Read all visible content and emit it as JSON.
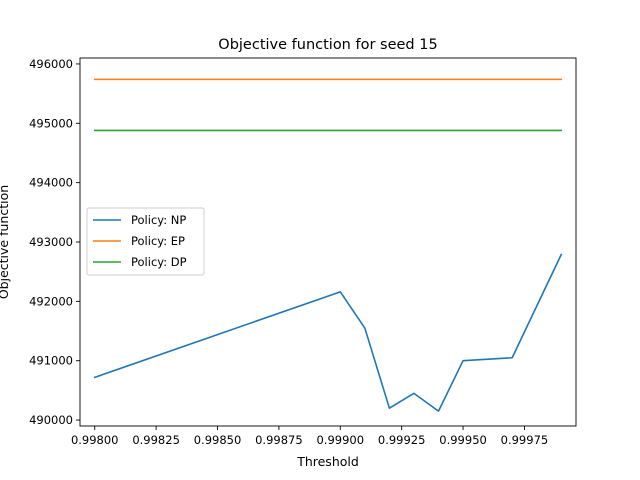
{
  "chart_data": {
    "type": "line",
    "title": "Objective function for seed 15",
    "xlabel": "Threshold",
    "ylabel": "Objective function",
    "xlim": [
      0.99794,
      0.99996
    ],
    "ylim": [
      489900,
      496100
    ],
    "x_ticks": [
      0.998,
      0.99825,
      0.9985,
      0.99875,
      0.999,
      0.99925,
      0.9995,
      0.99975
    ],
    "x_tick_labels": [
      "0.99800",
      "0.99825",
      "0.99850",
      "0.99875",
      "0.99900",
      "0.99925",
      "0.99950",
      "0.99975"
    ],
    "y_ticks": [
      490000,
      491000,
      492000,
      493000,
      494000,
      495000,
      496000
    ],
    "y_tick_labels": [
      "490000",
      "491000",
      "492000",
      "493000",
      "494000",
      "495000",
      "496000"
    ],
    "grid": false,
    "legend_position": "center-left",
    "series": [
      {
        "name": "Policy: NP",
        "color": "#1f77b4",
        "x": [
          0.998,
          0.999,
          0.9991,
          0.9992,
          0.9993,
          0.9994,
          0.9995,
          0.9997,
          0.9999
        ],
        "y": [
          490720,
          492160,
          491550,
          490200,
          490450,
          490150,
          491000,
          491050,
          492790
        ]
      },
      {
        "name": "Policy: EP",
        "color": "#ff7f0e",
        "x": [
          0.998,
          0.9999
        ],
        "y": [
          495740,
          495740
        ]
      },
      {
        "name": "Policy: DP",
        "color": "#2ca02c",
        "x": [
          0.998,
          0.9999
        ],
        "y": [
          494880,
          494880
        ]
      }
    ]
  }
}
